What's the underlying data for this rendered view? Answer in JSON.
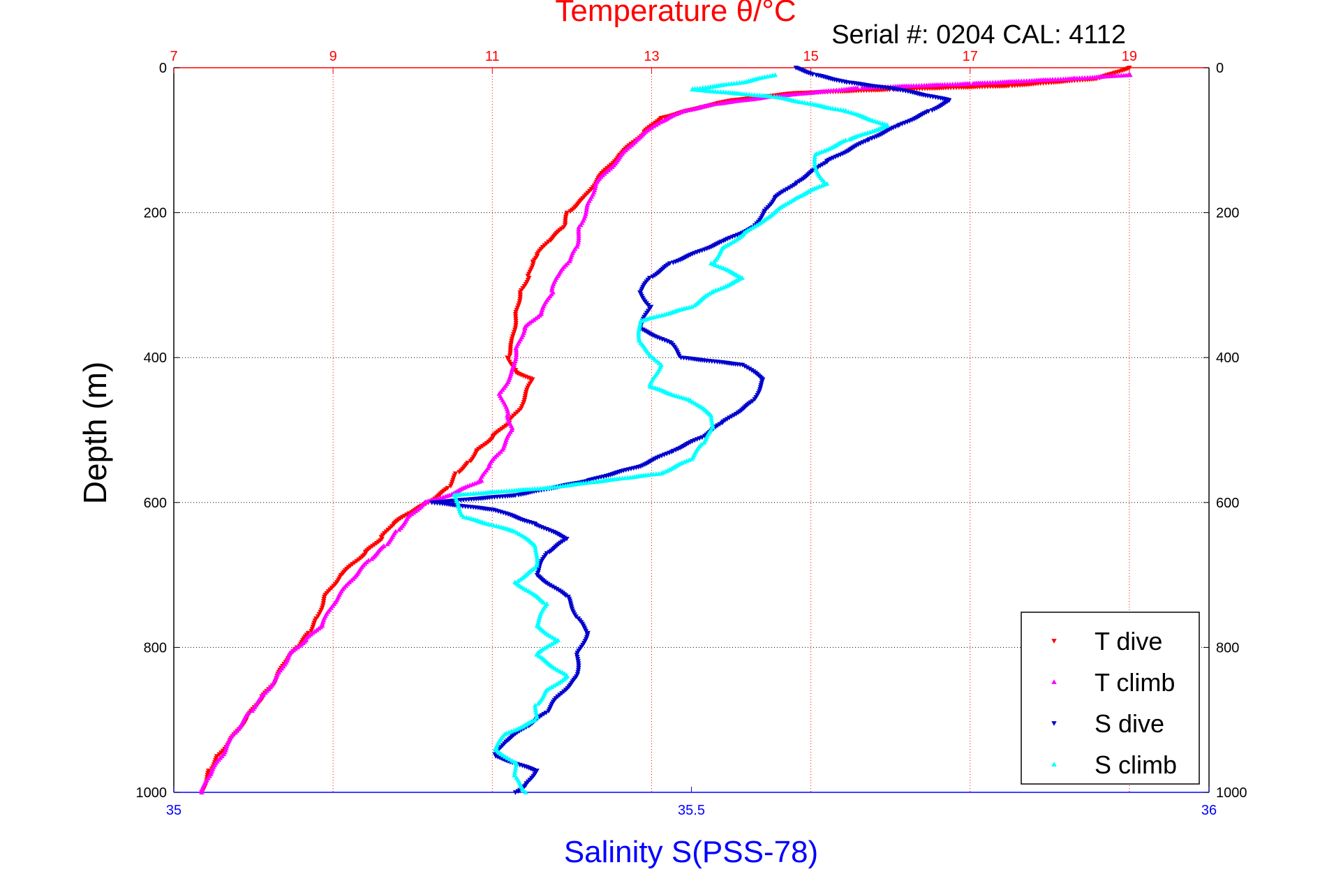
{
  "header": {
    "title": "Temperature θ/°C",
    "serial": "Serial #: 0204  CAL: 4112"
  },
  "axes": {
    "ylabel": "Depth (m)",
    "xlabel_bottom": "Salinity S(PSS-78)"
  },
  "colors": {
    "temperature_axis": "#ff0000",
    "salinity_axis": "#0000ff",
    "t_dive": "#ff0000",
    "t_climb": "#ff00ff",
    "s_dive": "#0000cc",
    "s_climb": "#00ffff"
  },
  "chart_data": {
    "type": "scatter",
    "title": "Temperature θ/°C",
    "ylabel": "Depth (m)",
    "x_top_label": "Temperature θ/°C",
    "x_bottom_label": "Salinity S(PSS-78)",
    "ylim": [
      0,
      1000
    ],
    "y_reversed": true,
    "y_ticks": [
      0,
      200,
      400,
      600,
      800,
      1000
    ],
    "x_top_lim": [
      7,
      20
    ],
    "x_top_ticks": [
      7,
      9,
      11,
      13,
      15,
      17,
      19
    ],
    "x_bottom_lim": [
      35,
      36
    ],
    "x_bottom_ticks": [
      35,
      35.5,
      36
    ],
    "x_bottom_tick_labels": [
      "35",
      "35.5",
      "36"
    ],
    "grid": true,
    "legend_position": "bottom-right",
    "series": [
      {
        "name": "T dive",
        "axis": "temperature",
        "marker": "triangle-down",
        "color": "#ff0000",
        "points": [
          [
            19.0,
            0
          ],
          [
            18.6,
            15
          ],
          [
            17.5,
            25
          ],
          [
            16.0,
            30
          ],
          [
            14.8,
            35
          ],
          [
            14.0,
            45
          ],
          [
            13.6,
            55
          ],
          [
            13.1,
            70
          ],
          [
            12.9,
            90
          ],
          [
            12.6,
            120
          ],
          [
            12.35,
            150
          ],
          [
            12.15,
            180
          ],
          [
            11.95,
            200
          ],
          [
            11.9,
            220
          ],
          [
            11.7,
            240
          ],
          [
            11.55,
            260
          ],
          [
            11.5,
            270
          ],
          [
            11.45,
            290
          ],
          [
            11.35,
            310
          ],
          [
            11.3,
            340
          ],
          [
            11.25,
            380
          ],
          [
            11.2,
            400
          ],
          [
            11.3,
            420
          ],
          [
            11.5,
            430
          ],
          [
            11.35,
            470
          ],
          [
            11.2,
            490
          ],
          [
            11.0,
            510
          ],
          [
            10.8,
            530
          ],
          [
            10.7,
            545
          ],
          [
            10.55,
            560
          ],
          [
            10.45,
            580
          ],
          [
            10.2,
            600
          ],
          [
            9.95,
            615
          ],
          [
            9.75,
            630
          ],
          [
            9.6,
            650
          ],
          [
            9.4,
            670
          ],
          [
            9.1,
            700
          ],
          [
            8.9,
            730
          ],
          [
            8.8,
            760
          ],
          [
            8.7,
            780
          ],
          [
            8.55,
            800
          ],
          [
            8.4,
            820
          ],
          [
            8.25,
            850
          ],
          [
            8.1,
            870
          ],
          [
            7.9,
            900
          ],
          [
            7.7,
            930
          ],
          [
            7.55,
            950
          ],
          [
            7.45,
            970
          ],
          [
            7.35,
            1000
          ]
        ]
      },
      {
        "name": "T climb",
        "axis": "temperature",
        "marker": "triangle-up",
        "color": "#ff00ff",
        "points": [
          [
            19.0,
            10
          ],
          [
            18.3,
            15
          ],
          [
            17.0,
            22
          ],
          [
            15.6,
            28
          ],
          [
            14.5,
            40
          ],
          [
            13.8,
            50
          ],
          [
            13.4,
            60
          ],
          [
            13.1,
            75
          ],
          [
            12.8,
            100
          ],
          [
            12.55,
            130
          ],
          [
            12.3,
            160
          ],
          [
            12.2,
            190
          ],
          [
            12.1,
            220
          ],
          [
            12.05,
            250
          ],
          [
            11.95,
            270
          ],
          [
            11.8,
            290
          ],
          [
            11.75,
            310
          ],
          [
            11.6,
            340
          ],
          [
            11.4,
            360
          ],
          [
            11.3,
            390
          ],
          [
            11.25,
            420
          ],
          [
            11.1,
            450
          ],
          [
            11.2,
            480
          ],
          [
            11.25,
            500
          ],
          [
            11.1,
            530
          ],
          [
            10.95,
            550
          ],
          [
            10.85,
            570
          ],
          [
            10.45,
            590
          ],
          [
            10.15,
            600
          ],
          [
            9.95,
            620
          ],
          [
            9.8,
            640
          ],
          [
            9.65,
            660
          ],
          [
            9.45,
            680
          ],
          [
            9.2,
            710
          ],
          [
            9.0,
            740
          ],
          [
            8.85,
            770
          ],
          [
            8.65,
            790
          ],
          [
            8.45,
            810
          ],
          [
            8.3,
            840
          ],
          [
            8.1,
            870
          ],
          [
            7.95,
            890
          ],
          [
            7.75,
            920
          ],
          [
            7.6,
            950
          ],
          [
            7.45,
            975
          ],
          [
            7.35,
            1000
          ]
        ]
      },
      {
        "name": "S dive",
        "axis": "salinity",
        "marker": "triangle-down",
        "color": "#0000cc",
        "points": [
          [
            35.6,
            0
          ],
          [
            35.62,
            10
          ],
          [
            35.65,
            20
          ],
          [
            35.7,
            30
          ],
          [
            35.75,
            45
          ],
          [
            35.73,
            60
          ],
          [
            35.7,
            80
          ],
          [
            35.67,
            100
          ],
          [
            35.63,
            130
          ],
          [
            35.6,
            160
          ],
          [
            35.58,
            180
          ],
          [
            35.57,
            200
          ],
          [
            35.56,
            220
          ],
          [
            35.53,
            240
          ],
          [
            35.48,
            270
          ],
          [
            35.46,
            290
          ],
          [
            35.45,
            310
          ],
          [
            35.46,
            330
          ],
          [
            35.45,
            360
          ],
          [
            35.48,
            380
          ],
          [
            35.49,
            400
          ],
          [
            35.55,
            410
          ],
          [
            35.57,
            430
          ],
          [
            35.56,
            460
          ],
          [
            35.53,
            490
          ],
          [
            35.51,
            510
          ],
          [
            35.48,
            530
          ],
          [
            35.45,
            550
          ],
          [
            35.4,
            570
          ],
          [
            35.33,
            590
          ],
          [
            35.25,
            600
          ],
          [
            35.31,
            610
          ],
          [
            35.35,
            630
          ],
          [
            35.38,
            650
          ],
          [
            35.36,
            670
          ],
          [
            35.35,
            700
          ],
          [
            35.38,
            730
          ],
          [
            35.39,
            760
          ],
          [
            35.4,
            780
          ],
          [
            35.39,
            810
          ],
          [
            35.39,
            840
          ],
          [
            35.37,
            870
          ],
          [
            35.36,
            890
          ],
          [
            35.34,
            910
          ],
          [
            35.32,
            930
          ],
          [
            35.31,
            950
          ],
          [
            35.35,
            970
          ],
          [
            35.34,
            990
          ],
          [
            35.33,
            1000
          ]
        ]
      },
      {
        "name": "S climb",
        "axis": "salinity",
        "marker": "triangle-up",
        "color": "#00ffff",
        "points": [
          [
            35.58,
            10
          ],
          [
            35.55,
            20
          ],
          [
            35.5,
            30
          ],
          [
            35.58,
            40
          ],
          [
            35.65,
            60
          ],
          [
            35.69,
            80
          ],
          [
            35.65,
            100
          ],
          [
            35.62,
            120
          ],
          [
            35.62,
            140
          ],
          [
            35.63,
            160
          ],
          [
            35.6,
            180
          ],
          [
            35.57,
            210
          ],
          [
            35.55,
            230
          ],
          [
            35.53,
            250
          ],
          [
            35.52,
            270
          ],
          [
            35.55,
            290
          ],
          [
            35.52,
            310
          ],
          [
            35.5,
            330
          ],
          [
            35.45,
            350
          ],
          [
            35.45,
            380
          ],
          [
            35.47,
            410
          ],
          [
            35.46,
            440
          ],
          [
            35.5,
            460
          ],
          [
            35.52,
            480
          ],
          [
            35.52,
            500
          ],
          [
            35.51,
            520
          ],
          [
            35.5,
            540
          ],
          [
            35.47,
            560
          ],
          [
            35.36,
            580
          ],
          [
            35.27,
            590
          ],
          [
            35.28,
            620
          ],
          [
            35.33,
            640
          ],
          [
            35.35,
            660
          ],
          [
            35.35,
            690
          ],
          [
            35.33,
            710
          ],
          [
            35.36,
            740
          ],
          [
            35.35,
            770
          ],
          [
            35.37,
            790
          ],
          [
            35.35,
            810
          ],
          [
            35.38,
            840
          ],
          [
            35.36,
            860
          ],
          [
            35.35,
            880
          ],
          [
            35.35,
            900
          ],
          [
            35.32,
            920
          ],
          [
            35.31,
            940
          ],
          [
            35.33,
            960
          ],
          [
            35.33,
            980
          ],
          [
            35.34,
            1000
          ]
        ]
      }
    ]
  }
}
